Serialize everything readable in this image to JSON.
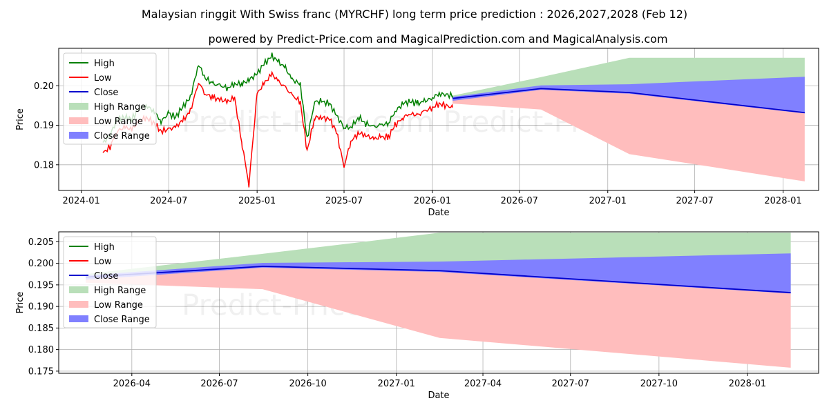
{
  "title": "Malaysian ringgit With Swiss franc (MYRCHF) long term price prediction : 2026,2027,2028 (Feb 12)",
  "subtitle": "powered by Predict-Price.com and MagicalPrediction.com and MagicalAnalysis.com",
  "watermark": "Predict-Price.com",
  "colors": {
    "high": "#008000",
    "low": "#ff0000",
    "close": "#0000cd",
    "high_range": "#b9dfb9",
    "low_range": "#ffbdbd",
    "close_range": "#8080ff"
  },
  "legend": {
    "high": "High",
    "low": "Low",
    "close": "Close",
    "high_range": "High Range",
    "low_range": "Low Range",
    "close_range": "Close Range"
  },
  "chart_data": [
    {
      "type": "line",
      "name": "top",
      "xlabel": "Date",
      "ylabel": "Price",
      "xlim": [
        "2023-11-15",
        "2028-03-15"
      ],
      "ylim": [
        0.1735,
        0.2095
      ],
      "x_ticks": [
        "2024-01",
        "2024-07",
        "2025-01",
        "2025-07",
        "2026-01",
        "2026-07",
        "2027-01",
        "2027-07",
        "2028-01"
      ],
      "y_ticks": [
        0.18,
        0.19,
        0.2
      ],
      "y_tick_labels": [
        "0.18",
        "0.19",
        "0.20"
      ],
      "legend_position": "upper-left",
      "grid": true,
      "history": {
        "dates": [
          "2024-02-15",
          "2024-03-01",
          "2024-03-15",
          "2024-04-01",
          "2024-04-15",
          "2024-05-01",
          "2024-05-15",
          "2024-06-01",
          "2024-06-15",
          "2024-07-01",
          "2024-07-15",
          "2024-08-01",
          "2024-08-15",
          "2024-09-01",
          "2024-09-15",
          "2024-10-01",
          "2024-10-15",
          "2024-11-01",
          "2024-11-15",
          "2024-12-01",
          "2024-12-15",
          "2025-01-01",
          "2025-01-15",
          "2025-02-01",
          "2025-02-15",
          "2025-03-01",
          "2025-03-15",
          "2025-04-01",
          "2025-04-15",
          "2025-05-01",
          "2025-05-15",
          "2025-06-01",
          "2025-06-15",
          "2025-07-01",
          "2025-07-15",
          "2025-08-01",
          "2025-08-15",
          "2025-09-01",
          "2025-09-15",
          "2025-10-01",
          "2025-10-15",
          "2025-11-01",
          "2025-11-15",
          "2025-12-01",
          "2025-12-15",
          "2026-01-01",
          "2026-01-15",
          "2026-02-12"
        ],
        "high": [
          0.1855,
          0.1875,
          0.1915,
          0.192,
          0.1915,
          0.1945,
          0.195,
          0.1935,
          0.191,
          0.193,
          0.192,
          0.195,
          0.197,
          0.2055,
          0.202,
          0.2005,
          0.2,
          0.1995,
          0.2005,
          0.2005,
          0.2015,
          0.203,
          0.2055,
          0.2075,
          0.206,
          0.2045,
          0.2015,
          0.2005,
          0.1865,
          0.196,
          0.196,
          0.1955,
          0.1925,
          0.1895,
          0.1895,
          0.192,
          0.1905,
          0.1895,
          0.19,
          0.1905,
          0.1935,
          0.1955,
          0.196,
          0.1955,
          0.196,
          0.197,
          0.198,
          0.1975
        ],
        "low": [
          0.183,
          0.1845,
          0.1885,
          0.1895,
          0.189,
          0.191,
          0.192,
          0.1905,
          0.1885,
          0.189,
          0.1895,
          0.1915,
          0.1935,
          0.201,
          0.198,
          0.197,
          0.1965,
          0.196,
          0.197,
          0.185,
          0.175,
          0.198,
          0.2005,
          0.203,
          0.201,
          0.1995,
          0.1975,
          0.196,
          0.1835,
          0.192,
          0.192,
          0.1915,
          0.1885,
          0.1795,
          0.186,
          0.188,
          0.1875,
          0.1865,
          0.187,
          0.187,
          0.19,
          0.192,
          0.193,
          0.1925,
          0.1935,
          0.1945,
          0.1955,
          0.1945
        ]
      },
      "forecast": {
        "dates": [
          "2026-02-12",
          "2026-08-15",
          "2027-02-15",
          "2028-02-15"
        ],
        "close": [
          0.1968,
          0.1993,
          0.1983,
          0.1932
        ],
        "high_upper": [
          0.1975,
          0.2022,
          0.2071,
          0.2071
        ],
        "low_lower": [
          0.1955,
          0.194,
          0.1827,
          0.1758
        ],
        "close_upper": [
          0.1972,
          0.2001,
          0.2004,
          0.2023
        ],
        "close_lower": [
          0.1962,
          0.199,
          0.198,
          0.193
        ]
      }
    },
    {
      "type": "line",
      "name": "bottom",
      "xlabel": "Date",
      "ylabel": "Price",
      "xlim": [
        "2026-01-15",
        "2028-03-15"
      ],
      "ylim": [
        0.1745,
        0.2073
      ],
      "x_ticks": [
        "2026-04",
        "2026-07",
        "2026-10",
        "2027-01",
        "2027-04",
        "2027-07",
        "2027-10",
        "2028-01"
      ],
      "y_ticks": [
        0.175,
        0.18,
        0.185,
        0.19,
        0.195,
        0.2,
        0.205
      ],
      "y_tick_labels": [
        "0.175",
        "0.180",
        "0.185",
        "0.190",
        "0.195",
        "0.200",
        "0.205"
      ],
      "legend_position": "upper-left",
      "grid": true,
      "forecast": {
        "dates": [
          "2026-02-12",
          "2026-08-15",
          "2027-02-15",
          "2028-02-15"
        ],
        "close": [
          0.1968,
          0.1993,
          0.1983,
          0.1932
        ],
        "high_upper": [
          0.1975,
          0.2022,
          0.2071,
          0.2071
        ],
        "low_lower": [
          0.1955,
          0.194,
          0.1827,
          0.1758
        ],
        "close_upper": [
          0.1972,
          0.2001,
          0.2004,
          0.2023
        ],
        "close_lower": [
          0.1962,
          0.199,
          0.198,
          0.193
        ]
      }
    }
  ]
}
